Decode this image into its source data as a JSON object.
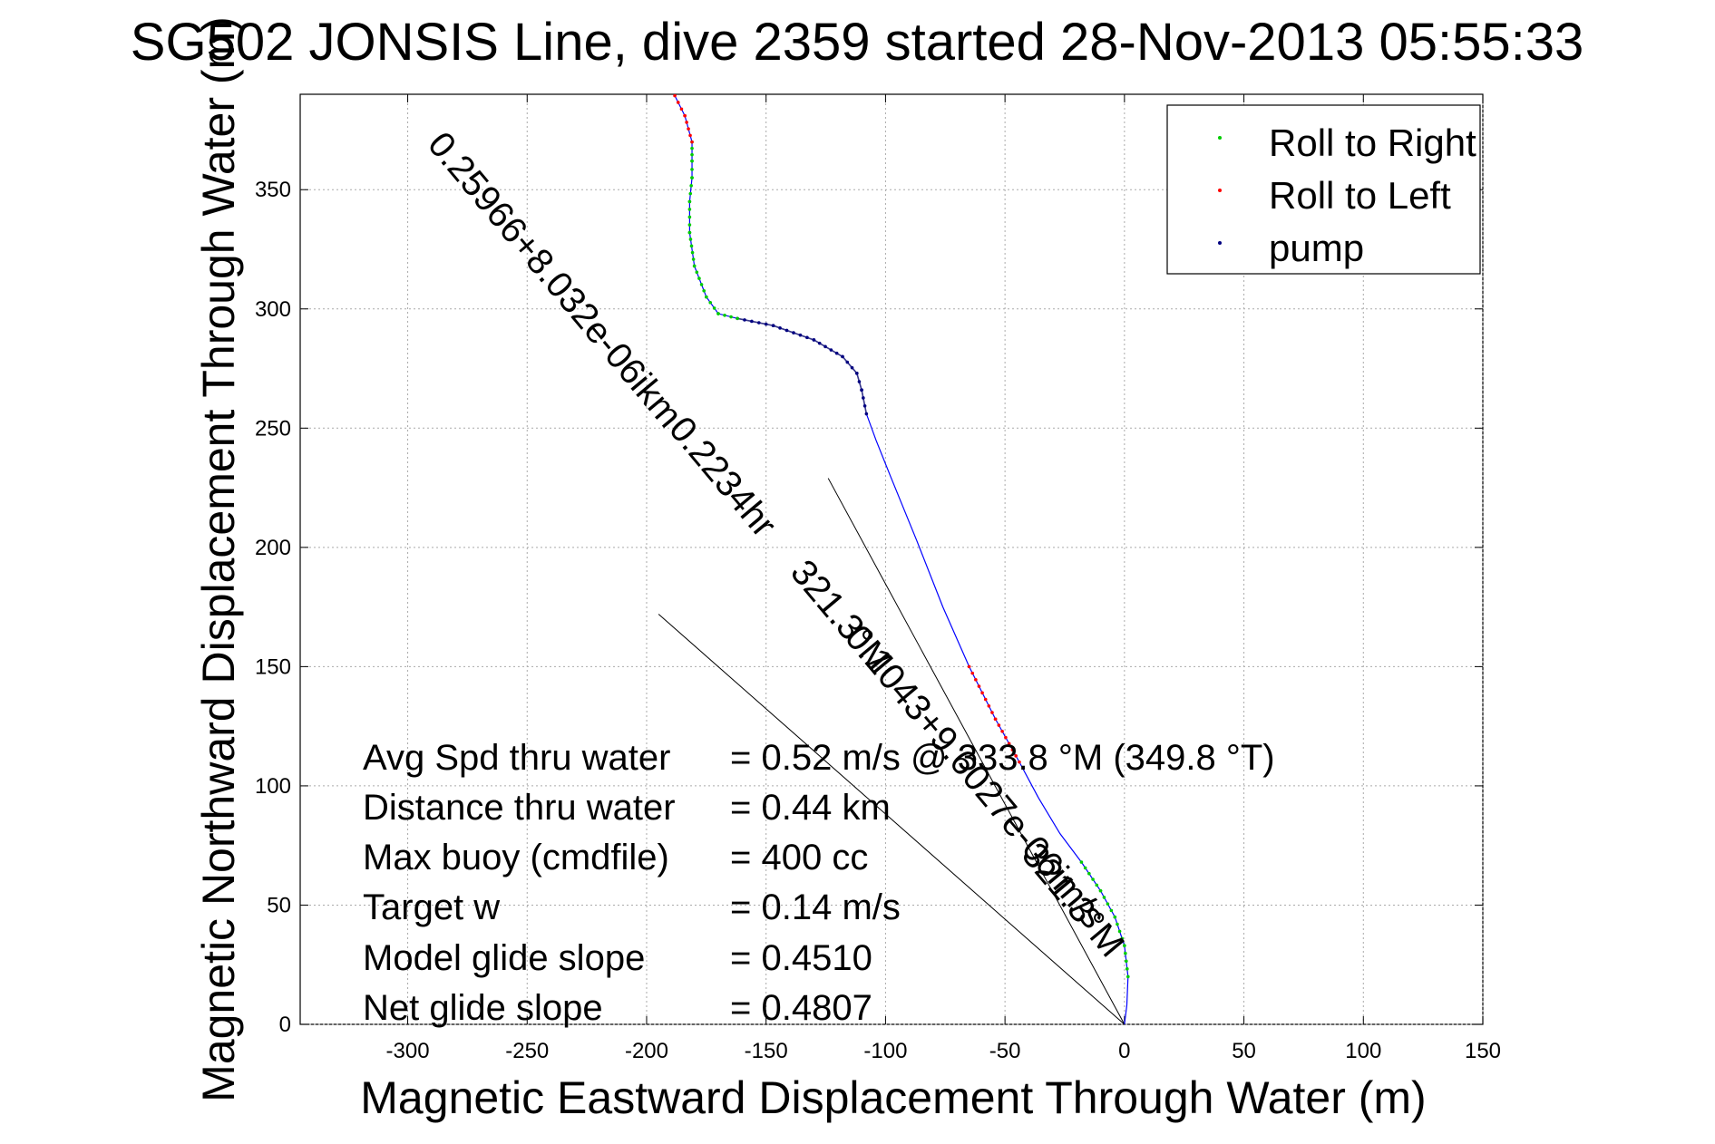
{
  "chart_data": {
    "type": "line",
    "title": "SG502 JONSIS Line, dive 2359 started 28-Nov-2013 05:55:33",
    "xlabel": "Magnetic Eastward Displacement Through Water (m)",
    "ylabel": "Magnetic Northward Displacement Through Water (m)",
    "xlim": [
      -345,
      150
    ],
    "ylim": [
      0,
      390
    ],
    "xticks": [
      -300,
      -250,
      -200,
      -150,
      -100,
      -50,
      0,
      50,
      100,
      150
    ],
    "yticks": [
      0,
      50,
      100,
      150,
      200,
      250,
      300,
      350
    ],
    "xtick_labels": [
      "-300",
      "-250",
      "-200",
      "-150",
      "-100",
      "-50",
      "0",
      "50",
      "100",
      "150"
    ],
    "ytick_labels": [
      "0",
      "50",
      "100",
      "150",
      "200",
      "250",
      "300",
      "350"
    ],
    "grid": true,
    "legend_position": "top-right",
    "legend": [
      {
        "label": "Roll to Right",
        "color": "#00cc00"
      },
      {
        "label": "Roll to Left",
        "color": "#ff0000"
      },
      {
        "label": "pump",
        "color": "#000080"
      }
    ],
    "track": {
      "color": "#0000ff",
      "points": [
        [
          0,
          0
        ],
        [
          1,
          8
        ],
        [
          1.5,
          20
        ],
        [
          0,
          33
        ],
        [
          -4,
          45
        ],
        [
          -10,
          56
        ],
        [
          -18,
          68
        ],
        [
          -27,
          80
        ],
        [
          -36,
          95
        ],
        [
          -44,
          110
        ],
        [
          -54,
          128
        ],
        [
          -65,
          150
        ],
        [
          -76,
          175
        ],
        [
          -87,
          203
        ],
        [
          -98,
          230
        ],
        [
          -104,
          245
        ],
        [
          -108,
          256
        ],
        [
          -110,
          266
        ],
        [
          -112,
          273
        ],
        [
          -118,
          280
        ],
        [
          -130,
          287
        ],
        [
          -147,
          293
        ],
        [
          -162,
          296
        ],
        [
          -170,
          298
        ],
        [
          -175,
          305
        ],
        [
          -180,
          318
        ],
        [
          -182,
          332
        ],
        [
          -182,
          345
        ],
        [
          -181,
          355
        ],
        [
          -181,
          362
        ],
        [
          -181,
          370
        ],
        [
          -184,
          381
        ],
        [
          -191,
          395
        ]
      ],
      "pump_segments": [
        [
          16,
          21
        ]
      ],
      "roll_right_ranges": [
        [
          2,
          5
        ],
        [
          21,
          29
        ]
      ],
      "roll_left_ranges": [
        [
          9,
          10
        ],
        [
          30,
          31
        ]
      ]
    },
    "reference_lines": [
      {
        "from": [
          0,
          0
        ],
        "to": [
          -195,
          172
        ],
        "color": "#000000"
      },
      {
        "from": [
          0,
          0
        ],
        "to": [
          -124,
          229
        ],
        "color": "#000000"
      }
    ],
    "slope_labels": [
      "0.25966+8.032e-06ikm",
      "0.2234hr",
      "321.3°M",
      "0.1043+9.6027e-06im/s",
      "321.3°M"
    ],
    "stats": [
      {
        "label": "Avg Spd thru water",
        "value": "=  0.52 m/s @  333.8 °M (349.8 °T)"
      },
      {
        "label": "Distance thru water",
        "value": "=  0.44 km"
      },
      {
        "label": "Max buoy (cmdfile)",
        "value": "= 400 cc"
      },
      {
        "label": "Target w",
        "value": "= 0.14 m/s"
      },
      {
        "label": "Model glide slope",
        "value": "= 0.4510"
      },
      {
        "label": "Net glide slope",
        "value": "= 0.4807"
      }
    ]
  }
}
